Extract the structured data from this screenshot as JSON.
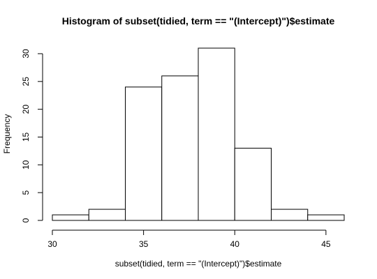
{
  "chart_data": {
    "type": "bar",
    "title": "Histogram of subset(tidied, term == \"(Intercept)\")$estimate",
    "xlabel": "subset(tidied, term == \"(Intercept)\")$estimate",
    "ylabel": "Frequency",
    "bins": [
      {
        "x0": 30,
        "x1": 32,
        "count": 1
      },
      {
        "x0": 32,
        "x1": 34,
        "count": 2
      },
      {
        "x0": 34,
        "x1": 36,
        "count": 24
      },
      {
        "x0": 36,
        "x1": 38,
        "count": 26
      },
      {
        "x0": 38,
        "x1": 40,
        "count": 31
      },
      {
        "x0": 40,
        "x1": 42,
        "count": 13
      },
      {
        "x0": 42,
        "x1": 44,
        "count": 2
      },
      {
        "x0": 44,
        "x1": 46,
        "count": 1
      }
    ],
    "xlim": [
      30,
      46
    ],
    "ylim": [
      0,
      31
    ],
    "x_ticks": [
      30,
      35,
      40,
      45
    ],
    "y_ticks": [
      0,
      5,
      10,
      15,
      20,
      25,
      30
    ],
    "grid": false
  }
}
